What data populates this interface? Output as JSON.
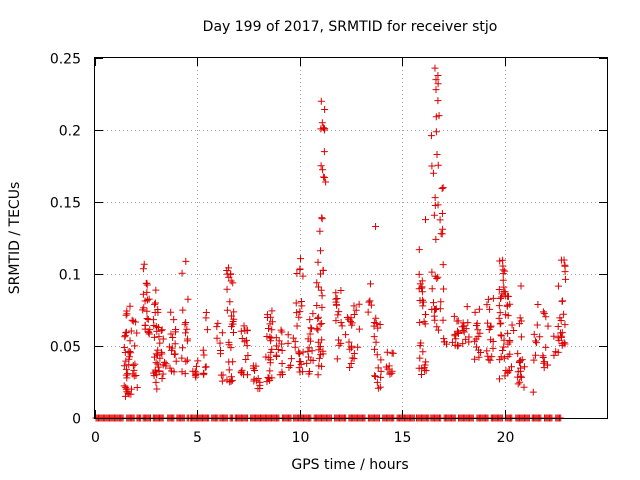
{
  "chart_data": {
    "type": "scatter",
    "title": "Day 199 of 2017, SRMTID for receiver stjo",
    "xlabel": "GPS time / hours",
    "ylabel": "SRMTID / TECUs",
    "xlim": [
      0,
      25
    ],
    "ylim": [
      0,
      0.25
    ],
    "xticks": [
      "0",
      "5",
      "10",
      "15",
      "20"
    ],
    "yticks": [
      "0",
      "0.05",
      "0.1",
      "0.15",
      "0.2",
      "0.25"
    ],
    "grid": true,
    "marker": "+",
    "series": [
      {
        "name": "SRMTID",
        "color": "#dd0000",
        "clusters": [
          {
            "x": 1.6,
            "y_min": 0.015,
            "y_max": 0.085,
            "n": 32
          },
          {
            "x": 1.9,
            "y_min": 0.02,
            "y_max": 0.07,
            "n": 14
          },
          {
            "x": 2.5,
            "y_min": 0.055,
            "y_max": 0.11,
            "n": 22
          },
          {
            "x": 3.0,
            "y_min": 0.02,
            "y_max": 0.09,
            "n": 30
          },
          {
            "x": 3.3,
            "y_min": 0.025,
            "y_max": 0.065,
            "n": 12
          },
          {
            "x": 3.8,
            "y_min": 0.03,
            "y_max": 0.075,
            "n": 16
          },
          {
            "x": 4.4,
            "y_min": 0.025,
            "y_max": 0.11,
            "n": 16
          },
          {
            "x": 4.9,
            "y_min": 0.025,
            "y_max": 0.075,
            "n": 8
          },
          {
            "x": 5.4,
            "y_min": 0.03,
            "y_max": 0.08,
            "n": 10
          },
          {
            "x": 6.1,
            "y_min": 0.025,
            "y_max": 0.07,
            "n": 10
          },
          {
            "x": 6.6,
            "y_min": 0.025,
            "y_max": 0.105,
            "n": 30
          },
          {
            "x": 7.3,
            "y_min": 0.03,
            "y_max": 0.065,
            "n": 16
          },
          {
            "x": 7.9,
            "y_min": 0.02,
            "y_max": 0.04,
            "n": 12
          },
          {
            "x": 8.5,
            "y_min": 0.025,
            "y_max": 0.075,
            "n": 24
          },
          {
            "x": 9.0,
            "y_min": 0.03,
            "y_max": 0.065,
            "n": 14
          },
          {
            "x": 9.6,
            "y_min": 0.035,
            "y_max": 0.06,
            "n": 8
          },
          {
            "x": 10.0,
            "y_min": 0.03,
            "y_max": 0.115,
            "n": 22
          },
          {
            "x": 10.5,
            "y_min": 0.03,
            "y_max": 0.08,
            "n": 16
          },
          {
            "x": 11.0,
            "y_min": 0.03,
            "y_max": 0.14,
            "n": 32
          },
          {
            "x": 11.2,
            "y_min": 0.16,
            "y_max": 0.22,
            "n": 8
          },
          {
            "x": 11.9,
            "y_min": 0.04,
            "y_max": 0.09,
            "n": 16
          },
          {
            "x": 12.4,
            "y_min": 0.035,
            "y_max": 0.075,
            "n": 14
          },
          {
            "x": 12.8,
            "y_min": 0.04,
            "y_max": 0.085,
            "n": 8
          },
          {
            "x": 13.5,
            "y_min": 0.05,
            "y_max": 0.095,
            "n": 6
          },
          {
            "x": 13.8,
            "y_min": 0.02,
            "y_max": 0.07,
            "n": 18
          },
          {
            "x": 14.4,
            "y_min": 0.03,
            "y_max": 0.05,
            "n": 10
          },
          {
            "x": 16.0,
            "y_min": 0.03,
            "y_max": 0.14,
            "n": 30
          },
          {
            "x": 16.6,
            "y_min": 0.06,
            "y_max": 0.245,
            "n": 26
          },
          {
            "x": 17.0,
            "y_min": 0.05,
            "y_max": 0.165,
            "n": 14
          },
          {
            "x": 17.6,
            "y_min": 0.05,
            "y_max": 0.08,
            "n": 14
          },
          {
            "x": 18.1,
            "y_min": 0.05,
            "y_max": 0.08,
            "n": 12
          },
          {
            "x": 18.7,
            "y_min": 0.04,
            "y_max": 0.08,
            "n": 14
          },
          {
            "x": 19.3,
            "y_min": 0.04,
            "y_max": 0.085,
            "n": 16
          },
          {
            "x": 19.9,
            "y_min": 0.025,
            "y_max": 0.11,
            "n": 32
          },
          {
            "x": 20.3,
            "y_min": 0.03,
            "y_max": 0.085,
            "n": 18
          },
          {
            "x": 20.8,
            "y_min": 0.02,
            "y_max": 0.1,
            "n": 20
          },
          {
            "x": 21.6,
            "y_min": 0.04,
            "y_max": 0.08,
            "n": 8
          },
          {
            "x": 22.0,
            "y_min": 0.035,
            "y_max": 0.075,
            "n": 12
          },
          {
            "x": 22.5,
            "y_min": 0.04,
            "y_max": 0.065,
            "n": 6
          },
          {
            "x": 22.8,
            "y_min": 0.05,
            "y_max": 0.11,
            "n": 22
          }
        ],
        "outliers": [
          {
            "x": 11.05,
            "y": 0.22
          },
          {
            "x": 11.1,
            "y": 0.205
          },
          {
            "x": 11.2,
            "y": 0.2
          },
          {
            "x": 11.2,
            "y": 0.185
          },
          {
            "x": 11.2,
            "y": 0.167
          },
          {
            "x": 13.7,
            "y": 0.133
          },
          {
            "x": 16.45,
            "y": 0.175
          },
          {
            "x": 16.6,
            "y": 0.243
          },
          {
            "x": 16.65,
            "y": 0.235
          },
          {
            "x": 16.65,
            "y": 0.228
          },
          {
            "x": 16.8,
            "y": 0.21
          },
          {
            "x": 16.7,
            "y": 0.183
          },
          {
            "x": 16.75,
            "y": 0.148
          },
          {
            "x": 17.0,
            "y": 0.16
          },
          {
            "x": 16.9,
            "y": 0.128
          },
          {
            "x": 21.4,
            "y": 0.018
          }
        ],
        "zero_segments": [
          [
            0.05,
            1.4
          ],
          [
            1.55,
            1.95
          ],
          [
            2.05,
            2.25
          ],
          [
            2.35,
            2.75
          ],
          [
            2.85,
            3.35
          ],
          [
            3.55,
            3.85
          ],
          [
            4.0,
            4.4
          ],
          [
            4.5,
            4.6
          ],
          [
            4.65,
            5.6
          ],
          [
            5.7,
            6.0
          ],
          [
            6.1,
            6.5
          ],
          [
            6.6,
            6.75
          ],
          [
            6.85,
            7.5
          ],
          [
            7.6,
            9.0
          ],
          [
            9.15,
            9.6
          ],
          [
            9.7,
            10.6
          ],
          [
            10.7,
            11.6
          ],
          [
            11.7,
            12.3
          ],
          [
            12.4,
            13.2
          ],
          [
            13.35,
            13.95
          ],
          [
            14.05,
            14.65
          ],
          [
            14.75,
            15.6
          ],
          [
            15.7,
            16.3
          ],
          [
            16.4,
            16.9
          ],
          [
            17.05,
            17.6
          ],
          [
            17.75,
            18.5
          ],
          [
            18.65,
            19.2
          ],
          [
            19.35,
            19.9
          ],
          [
            20.05,
            20.4
          ],
          [
            20.55,
            21.25
          ],
          [
            21.35,
            21.8
          ],
          [
            21.95,
            22.35
          ],
          [
            22.5,
            22.75
          ]
        ]
      }
    ]
  }
}
